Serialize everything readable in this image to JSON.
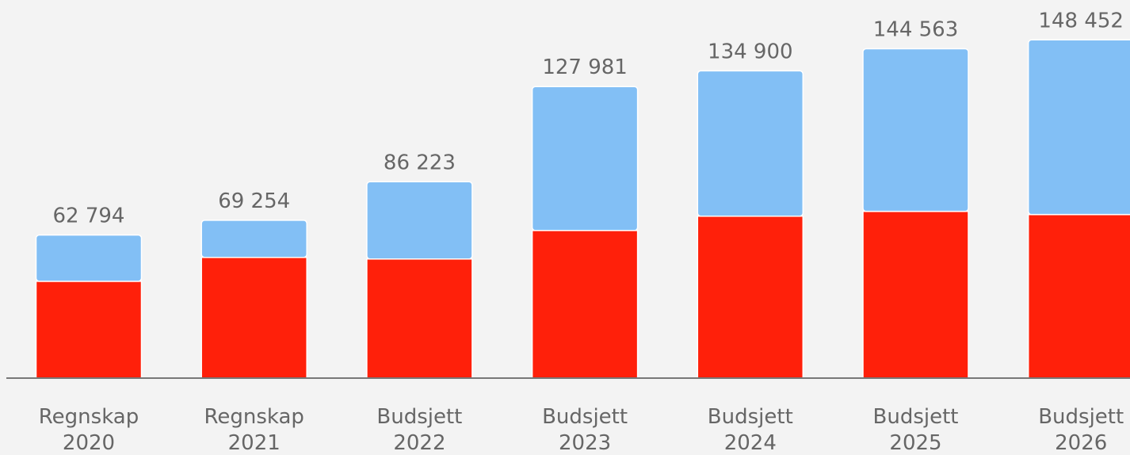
{
  "chart_data": {
    "type": "stacked_bar",
    "categories": [
      [
        "Regnskap",
        "2020"
      ],
      [
        "Regnskap",
        "2021"
      ],
      [
        "Budsjett",
        "2022"
      ],
      [
        "Budsjett",
        "2023"
      ],
      [
        "Budsjett",
        "2024"
      ],
      [
        "Budsjett",
        "2025"
      ],
      [
        "Budsjett",
        "2026"
      ]
    ],
    "series": [
      {
        "color": "#ff200a",
        "values": [
          42500,
          53000,
          52300,
          64800,
          71100,
          73200,
          71800
        ]
      },
      {
        "color": "#82bff5",
        "values": [
          20300,
          16300,
          33900,
          63200,
          63800,
          71400,
          76700
        ]
      }
    ],
    "totals": [
      62794,
      69254,
      86223,
      127981,
      134900,
      144563,
      148452
    ],
    "totals_labels": [
      "62 794",
      "69 254",
      "86 223",
      "127 981",
      "134 900",
      "144 563",
      "148 452"
    ],
    "ylim": [
      0,
      166000
    ]
  }
}
